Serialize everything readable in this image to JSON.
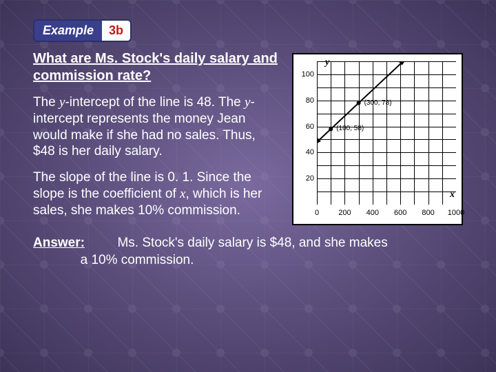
{
  "badge": {
    "label": "Example",
    "num": "3b"
  },
  "question": "What are Ms. Stock's daily salary and commission rate?",
  "para1_parts": [
    "The ",
    "y",
    "-intercept of the line is 48. The ",
    "y",
    "-intercept represents the money Jean would make if she had no sales. Thus, $48 is her daily salary."
  ],
  "para2_parts": [
    "The slope of the line is 0. 1. Since the slope is the coefficient of ",
    "x",
    ", which is her sales, she makes 10% commission."
  ],
  "answer_label": "Answer:",
  "answer_text": "Ms. Stock's daily salary is $48, and she makes",
  "answer_text2": "a 10% commission.",
  "chart": {
    "type": "line",
    "background_color": "#ffffff",
    "grid_color": "#000000",
    "line_color": "#000000",
    "x_axis_label": "x",
    "y_axis_label": "y",
    "xlim": [
      0,
      1000
    ],
    "ylim": [
      0,
      110
    ],
    "x_ticks": [
      0,
      200,
      400,
      600,
      800,
      1000
    ],
    "y_ticks": [
      20,
      40,
      60,
      80,
      100
    ],
    "grid_cols": 10,
    "grid_rows": 11,
    "y_intercept": 48,
    "slope": 0.1,
    "line_points": [
      [
        0,
        48
      ],
      [
        620,
        110
      ]
    ],
    "annotated_points": [
      {
        "x": 100,
        "y": 58,
        "label": "(100, 58)"
      },
      {
        "x": 300,
        "y": 78,
        "label": "(300, 78)"
      }
    ],
    "label_fontsize": 11,
    "axis_name_fontsize": 14,
    "line_width": 2,
    "point_radius": 3
  }
}
